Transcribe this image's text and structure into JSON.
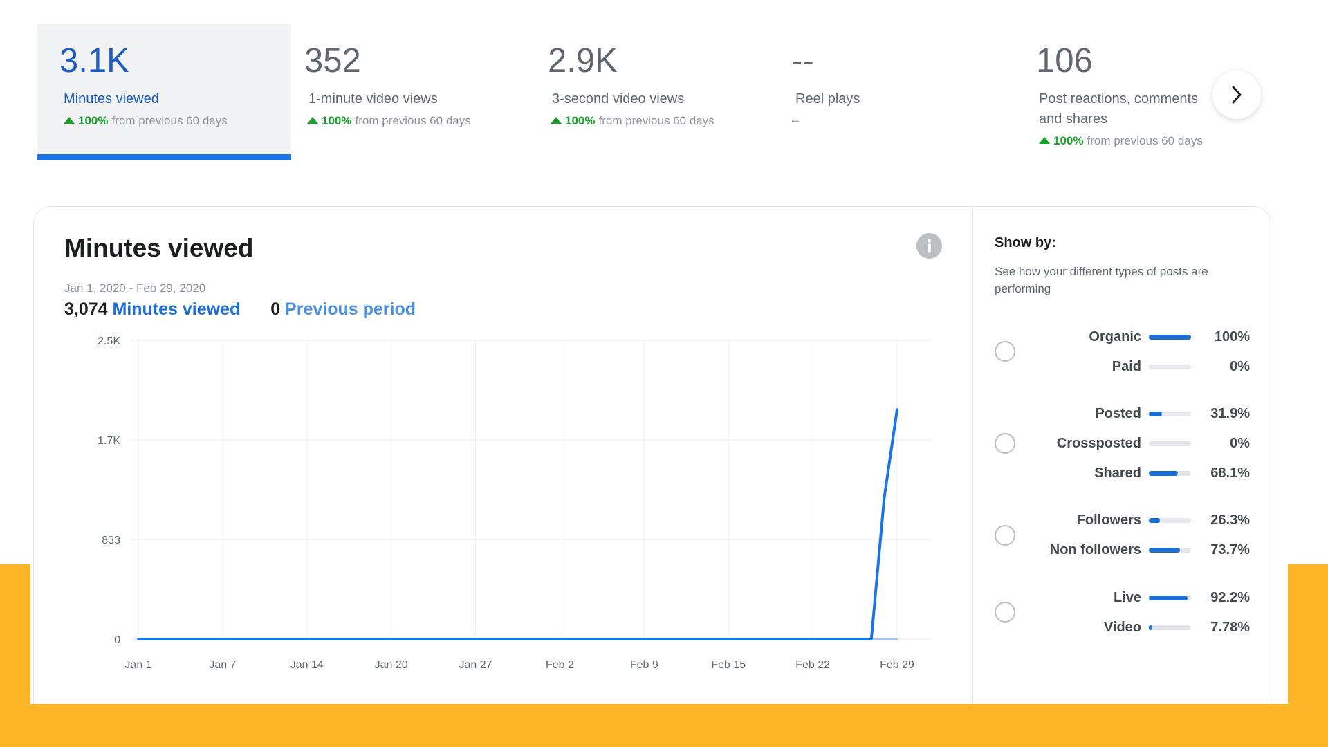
{
  "metrics": [
    {
      "value": "3.1K",
      "label": "Minutes viewed",
      "pct": "100%",
      "change_text": "from previous 60 days"
    },
    {
      "value": "352",
      "label": "1-minute video views",
      "pct": "100%",
      "change_text": "from previous 60 days"
    },
    {
      "value": "2.9K",
      "label": "3-second video views",
      "pct": "100%",
      "change_text": "from previous 60 days"
    },
    {
      "value": "--",
      "label": "Reel plays",
      "dash": "--"
    },
    {
      "value": "106",
      "label_line1": "Post reactions, comments",
      "label_line2": "and shares",
      "pct": "100%",
      "change_text": "from previous 60 days"
    }
  ],
  "panel": {
    "title": "Minutes viewed",
    "date_range": "Jan 1, 2020 - Feb 29, 2020",
    "current_value": "3,074",
    "current_label": "Minutes viewed",
    "previous_value": "0",
    "previous_label": "Previous period"
  },
  "chart_data": {
    "type": "line",
    "x_tick_labels": [
      "Jan 1",
      "Jan 7",
      "Jan 14",
      "Jan 20",
      "Jan 27",
      "Feb 2",
      "Feb 9",
      "Feb 15",
      "Feb 22",
      "Feb 29"
    ],
    "y_tick_labels": [
      "2.5K",
      "1.7K",
      "833",
      "0"
    ],
    "y_tick_values": [
      2500,
      1666,
      833,
      0
    ],
    "ylim": [
      0,
      2500
    ],
    "xlim": [
      "Jan 1",
      "Feb 29"
    ],
    "grid": true,
    "series": [
      {
        "name": "Minutes viewed",
        "color": "#1b74e4",
        "points": [
          {
            "x": "Jan 1",
            "y": 0
          },
          {
            "x": "Feb 27",
            "y": 0
          },
          {
            "x": "Feb 28",
            "y": 1180
          },
          {
            "x": "Feb 29",
            "y": 1920
          }
        ]
      },
      {
        "name": "Previous period",
        "color": "#a9c9f5",
        "points": [
          {
            "x": "Jan 1",
            "y": 0
          },
          {
            "x": "Feb 29",
            "y": 0
          }
        ]
      }
    ]
  },
  "show_by": {
    "title": "Show by:",
    "description": "See how your different types of posts are performing",
    "groups": [
      {
        "items": [
          {
            "label": "Organic",
            "pct": "100%",
            "value": 100
          },
          {
            "label": "Paid",
            "pct": "0%",
            "value": 0
          }
        ]
      },
      {
        "items": [
          {
            "label": "Posted",
            "pct": "31.9%",
            "value": 31.9
          },
          {
            "label": "Crossposted",
            "pct": "0%",
            "value": 0
          },
          {
            "label": "Shared",
            "pct": "68.1%",
            "value": 68.1
          }
        ]
      },
      {
        "items": [
          {
            "label": "Followers",
            "pct": "26.3%",
            "value": 26.3
          },
          {
            "label": "Non followers",
            "pct": "73.7%",
            "value": 73.7
          }
        ]
      },
      {
        "items": [
          {
            "label": "Live",
            "pct": "92.2%",
            "value": 92.2
          },
          {
            "label": "Video",
            "pct": "7.78%",
            "value": 7.78
          }
        ]
      }
    ]
  },
  "colors": {
    "accent": "#1b74e4",
    "positive": "#17a12b",
    "background_band": "#fbb526"
  }
}
